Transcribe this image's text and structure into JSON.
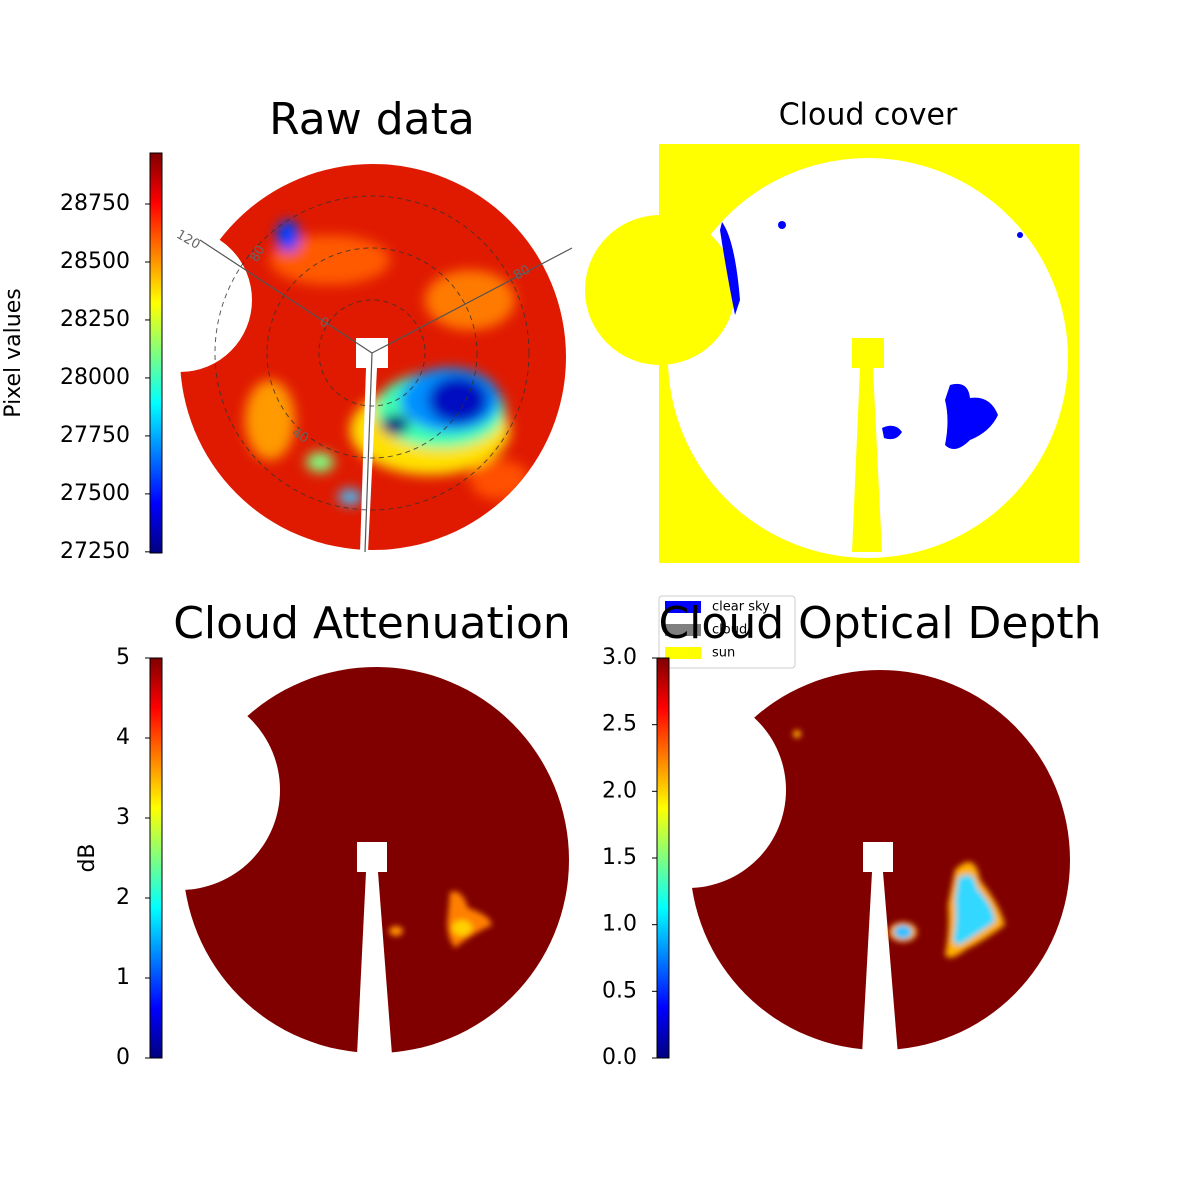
{
  "chart_data": [
    {
      "type": "image",
      "title": "Raw data",
      "colormap": "jet",
      "colorbar_label": "Pixel values",
      "clim": [
        27245,
        28970
      ],
      "cticks": [
        27250,
        27500,
        27750,
        28000,
        28250,
        28500,
        28750
      ],
      "annotations": [
        "120",
        "80",
        "40",
        "0",
        "80"
      ]
    },
    {
      "type": "image",
      "title": "Cloud cover",
      "legend": [
        {
          "name": "clear sky",
          "color": "#0000ff"
        },
        {
          "name": "cloud",
          "color": "#808080"
        },
        {
          "name": "sun",
          "color": "#ffff00"
        }
      ]
    },
    {
      "type": "image",
      "title": "Cloud Attenuation",
      "colormap": "jet",
      "colorbar_label": "dB",
      "clim": [
        0,
        5
      ],
      "cticks": [
        0,
        1,
        2,
        3,
        4,
        5
      ]
    },
    {
      "type": "image",
      "title": "Cloud Optical Depth",
      "colormap": "jet",
      "clim": [
        0,
        3
      ],
      "cticks": [
        {
          "value": 0,
          "label": "0.0"
        },
        {
          "value": 0.5,
          "label": "0.5"
        },
        {
          "value": 1,
          "label": "1.0"
        },
        {
          "value": 1.5,
          "label": "1.5"
        },
        {
          "value": 2,
          "label": "2.0"
        },
        {
          "value": 2.5,
          "label": "2.5"
        },
        {
          "value": 3,
          "label": "3.0"
        }
      ]
    }
  ]
}
